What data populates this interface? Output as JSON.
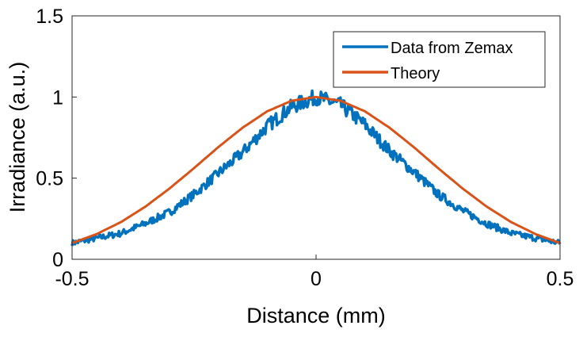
{
  "chart_data": {
    "type": "line",
    "title": "",
    "xlabel": "Distance (mm)",
    "ylabel": "Irradiance (a.u.)",
    "xlim": [
      -0.5,
      0.5
    ],
    "ylim": [
      0,
      1.5
    ],
    "xticks": [
      -0.5,
      0,
      0.5
    ],
    "xtick_labels": [
      "-0.5",
      "0",
      "0.5"
    ],
    "yticks": [
      0,
      0.5,
      1,
      1.5
    ],
    "ytick_labels": [
      "0",
      "0.5",
      "1",
      "1.5"
    ],
    "grid": false,
    "legend_position": "top-right",
    "series": [
      {
        "name": "Data from Zemax",
        "color": "#0072BD",
        "style": "noisy",
        "x": [
          -0.5,
          -0.45,
          -0.4,
          -0.35,
          -0.3,
          -0.25,
          -0.2,
          -0.15,
          -0.1,
          -0.05,
          0,
          0.05,
          0.1,
          0.15,
          0.2,
          0.25,
          0.3,
          0.35,
          0.4,
          0.45,
          0.5
        ],
        "y": [
          0.1,
          0.13,
          0.16,
          0.22,
          0.29,
          0.4,
          0.53,
          0.66,
          0.82,
          0.94,
          1.0,
          0.95,
          0.83,
          0.67,
          0.54,
          0.4,
          0.3,
          0.22,
          0.16,
          0.13,
          0.1
        ]
      },
      {
        "name": "Theory",
        "color": "#D95319",
        "style": "smooth",
        "x": [
          -0.5,
          -0.45,
          -0.4,
          -0.35,
          -0.3,
          -0.25,
          -0.2,
          -0.15,
          -0.1,
          -0.05,
          0,
          0.05,
          0.1,
          0.15,
          0.2,
          0.25,
          0.3,
          0.35,
          0.4,
          0.45,
          0.5
        ],
        "y": [
          0.1,
          0.155,
          0.229,
          0.324,
          0.437,
          0.562,
          0.692,
          0.812,
          0.912,
          0.977,
          1.0,
          0.977,
          0.912,
          0.812,
          0.692,
          0.562,
          0.437,
          0.324,
          0.229,
          0.155,
          0.1
        ]
      }
    ]
  }
}
